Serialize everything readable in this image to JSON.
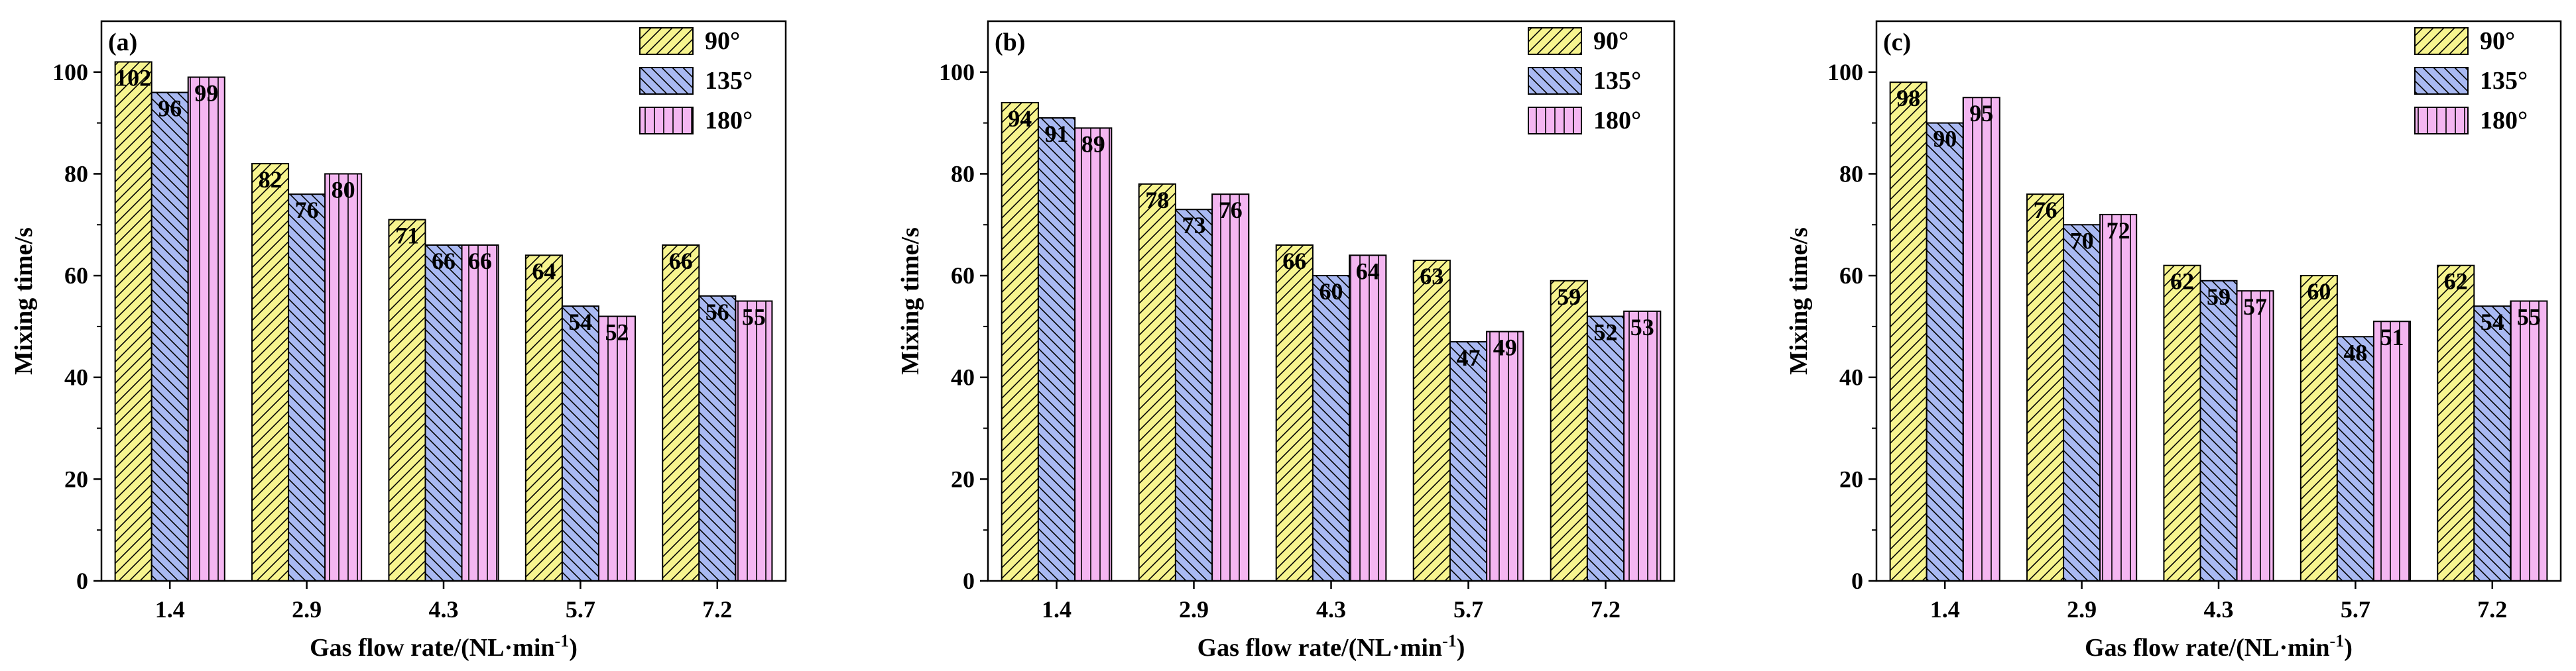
{
  "colors": {
    "series_90": "#f7f48f",
    "series_135": "#a9b9f2",
    "series_180": "#f4b6f1",
    "stroke": "#000000"
  },
  "chart_data": [
    {
      "type": "bar",
      "panel_label": "(a)",
      "categories": [
        "1.4",
        "2.9",
        "4.3",
        "5.7",
        "7.2"
      ],
      "series": [
        {
          "name": "90°",
          "values": [
            102,
            82,
            71,
            64,
            66
          ]
        },
        {
          "name": "135°",
          "values": [
            96,
            76,
            66,
            54,
            56
          ]
        },
        {
          "name": "180°",
          "values": [
            99,
            80,
            66,
            52,
            55
          ]
        }
      ],
      "xlabel_main": "Gas flow rate/(NL·min",
      "xlabel_sup": "-1",
      "xlabel_end": ")",
      "ylabel": "Mixing time/s",
      "ylim": [
        0,
        110
      ],
      "yticks": [
        "0",
        "20",
        "40",
        "60",
        "80",
        "100"
      ],
      "legend": "top-right"
    },
    {
      "type": "bar",
      "panel_label": "(b)",
      "categories": [
        "1.4",
        "2.9",
        "4.3",
        "5.7",
        "7.2"
      ],
      "series": [
        {
          "name": "90°",
          "values": [
            94,
            78,
            66,
            63,
            59
          ]
        },
        {
          "name": "135°",
          "values": [
            91,
            73,
            60,
            47,
            52
          ]
        },
        {
          "name": "180°",
          "values": [
            89,
            76,
            64,
            49,
            53
          ]
        }
      ],
      "xlabel_main": "Gas flow rate/(NL·min",
      "xlabel_sup": "-1",
      "xlabel_end": ")",
      "ylabel": "Mixing time/s",
      "ylim": [
        0,
        110
      ],
      "yticks": [
        "0",
        "20",
        "40",
        "60",
        "80",
        "100"
      ],
      "legend": "top-right"
    },
    {
      "type": "bar",
      "panel_label": "(c)",
      "categories": [
        "1.4",
        "2.9",
        "4.3",
        "5.7",
        "7.2"
      ],
      "series": [
        {
          "name": "90°",
          "values": [
            98,
            76,
            62,
            60,
            62
          ]
        },
        {
          "name": "135°",
          "values": [
            90,
            70,
            59,
            48,
            54
          ]
        },
        {
          "name": "180°",
          "values": [
            95,
            72,
            57,
            51,
            55
          ]
        }
      ],
      "xlabel_main": "Gas flow rate/(NL·min",
      "xlabel_sup": "-1",
      "xlabel_end": ")",
      "ylabel": "Mixing time/s",
      "ylim": [
        0,
        110
      ],
      "yticks": [
        "0",
        "20",
        "40",
        "60",
        "80",
        "100"
      ],
      "legend": "top-right"
    }
  ]
}
